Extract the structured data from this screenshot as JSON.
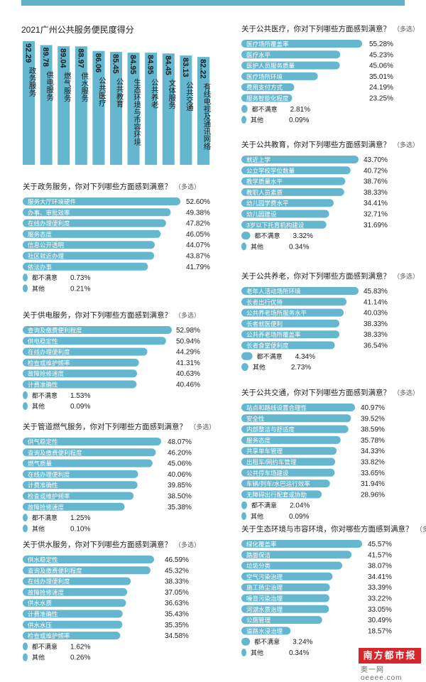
{
  "colors": {
    "bar": "#64b7cf",
    "bar_text": "#ffffff",
    "text": "#1c1c1c",
    "muted": "#5a5a5a",
    "brand": "#d7262b"
  },
  "chart_data": [
    {
      "type": "bar",
      "title": "2021广州公共服务便民度得分",
      "orientation": "vertical",
      "categories": [
        "政务服务",
        "供电服务",
        "燃气服务",
        "供水服务",
        "公共医疗",
        "公共教育",
        "生态环境与市容环境",
        "公共养老",
        "文体服务",
        "公共交通",
        "有线电视及通讯网络"
      ],
      "values": [
        92.29,
        89.78,
        89.04,
        88.97,
        86.06,
        85.45,
        84.95,
        84.95,
        84.45,
        83.13,
        82.22
      ],
      "value_labels": [
        "92.29",
        "89.78",
        "89.04",
        "88.97",
        "86.06",
        "85.45",
        "84.95",
        "84.95",
        "84.45",
        "83.13",
        "82.22"
      ]
    },
    {
      "type": "bar",
      "orientation": "horizontal",
      "title": "关于政务服务，你对下列哪些方面感到满意？",
      "note": "（多选）",
      "categories": [
        "服务大厅环境硬件",
        "办事、审批效率",
        "在线办理便利度",
        "服务态度",
        "信息公开透明",
        "社区就近办理",
        "依法办事",
        "都不满意",
        "其他"
      ],
      "values": [
        52.6,
        49.38,
        47.82,
        46.05,
        44.07,
        43.87,
        41.79,
        0.73,
        0.21
      ],
      "value_labels": [
        "52.60%",
        "49.38%",
        "47.82%",
        "46.05%",
        "44.07%",
        "43.87%",
        "41.79%",
        "0.73%",
        "0.21%"
      ]
    },
    {
      "type": "bar",
      "orientation": "horizontal",
      "title": "关于供电服务，你对下列哪些方面感到满意？",
      "note": "（多选）",
      "categories": [
        "查询及缴费便利程度",
        "供电稳定性",
        "在线办理便利度",
        "检查或维护频率",
        "故障抢修速度",
        "计费准确性",
        "都不满意",
        "其他"
      ],
      "values": [
        52.98,
        50.94,
        44.29,
        41.31,
        40.63,
        40.46,
        1.53,
        0.09
      ],
      "value_labels": [
        "52.98%",
        "50.94%",
        "44.29%",
        "41.31%",
        "40.63%",
        "40.46%",
        "1.53%",
        "0.09%"
      ]
    },
    {
      "type": "bar",
      "orientation": "horizontal",
      "title": "关于管道燃气服务，你对下列哪些方面感到满意？",
      "note": "（多选）",
      "categories": [
        "供气稳定性",
        "查询及缴费便利程度",
        "燃气质量",
        "在线办理便利度",
        "计费准确性",
        "检查或维护频率",
        "故障抢修速度",
        "都不满意",
        "其他"
      ],
      "values": [
        48.07,
        46.2,
        45.06,
        40.06,
        39.85,
        38.5,
        35.38,
        1.25,
        0.1
      ],
      "value_labels": [
        "48.07%",
        "46.20%",
        "45.06%",
        "40.06%",
        "39.85%",
        "38.50%",
        "35.38%",
        "1.25%",
        "0.10%"
      ]
    },
    {
      "type": "bar",
      "orientation": "horizontal",
      "title": "关于供水服务，你对下列哪些方面感到满意？",
      "note": "（多选）",
      "categories": [
        "供水稳定性",
        "查询及缴费便利程度",
        "在线办理便利度",
        "故障抢修速度",
        "供水水质",
        "计费准确性",
        "供水水压",
        "检查或维护频率",
        "都不满意",
        "其他"
      ],
      "values": [
        46.59,
        45.32,
        38.33,
        37.05,
        36.63,
        35.43,
        35.35,
        34.58,
        1.62,
        0.26
      ],
      "value_labels": [
        "46.59%",
        "45.32%",
        "38.33%",
        "37.05%",
        "36.63%",
        "35.43%",
        "35.35%",
        "34.58%",
        "1.62%",
        "0.26%"
      ]
    },
    {
      "type": "bar",
      "orientation": "horizontal",
      "title": "关于公共医疗，你对下列哪些方面感到满意？",
      "note": "（多选）",
      "categories": [
        "医疗场所覆盖率",
        "医疗水平",
        "医护人员服务质量",
        "医疗场所环境",
        "费用支付方式",
        "服务智能化程度",
        "都不满意",
        "其他"
      ],
      "values": [
        55.28,
        45.23,
        45.06,
        35.01,
        24.19,
        23.25,
        2.81,
        0.09
      ],
      "value_labels": [
        "55.28%",
        "45.23%",
        "45.06%",
        "35.01%",
        "24.19%",
        "23.25%",
        "2.81%",
        "0.09%"
      ]
    },
    {
      "type": "bar",
      "orientation": "horizontal",
      "title": "关于公共教育，你对下列哪些方面感到满意？",
      "note": "（多选）",
      "categories": [
        "就近上学",
        "公立学校学位数量",
        "教学质量水平",
        "教职人员素质",
        "幼儿园学费水平",
        "幼儿园建设",
        "3岁以下托育机构建设",
        "都不满意",
        "其他"
      ],
      "values": [
        43.7,
        40.72,
        38.76,
        38.33,
        34.41,
        32.71,
        31.69,
        3.32,
        0.34
      ],
      "value_labels": [
        "43.70%",
        "40.72%",
        "38.76%",
        "38.33%",
        "34.41%",
        "32.71%",
        "31.69%",
        "3.32%",
        "0.34%"
      ]
    },
    {
      "type": "bar",
      "orientation": "horizontal",
      "title": "关于公共养老，你对下列哪些方面感到满意？",
      "note": "（多选）",
      "categories": [
        "老年人活动场所环境",
        "长者出行优待",
        "公共养老场所服务水平",
        "长者就医便利",
        "公共养老场所覆盖率",
        "长者食堂便利度",
        "都不满意",
        "其他"
      ],
      "values": [
        45.83,
        41.14,
        40.03,
        38.33,
        38.33,
        36.54,
        4.34,
        2.73
      ],
      "value_labels": [
        "45.83%",
        "41.14%",
        "40.03%",
        "38.33%",
        "38.33%",
        "36.54%",
        "4.34%",
        "2.73%"
      ]
    },
    {
      "type": "bar",
      "orientation": "horizontal",
      "title": "关于公共交通，你对下列哪些方面感到满意？",
      "note": "（多选）",
      "categories": [
        "站点和路线设置合理性",
        "安全性",
        "内部整洁与舒适度",
        "服务态度",
        "共享单车管理",
        "出租车/网约车管理",
        "公共停车场建设",
        "车辆/列车/水巴运行效率",
        "无障碍出行配套或协助",
        "都不满意",
        "其他"
      ],
      "values": [
        40.97,
        39.52,
        38.59,
        35.78,
        34.33,
        33.82,
        33.65,
        31.94,
        28.96,
        2.04,
        0.09
      ],
      "value_labels": [
        "40.97%",
        "39.52%",
        "38.59%",
        "35.78%",
        "34.33%",
        "33.82%",
        "33.65%",
        "31.94%",
        "28.96%",
        "2.04%",
        "0.09%"
      ]
    },
    {
      "type": "bar",
      "orientation": "horizontal",
      "title": "关于生态环境与市容环境，你对哪些方面感到满意？",
      "note": "（多选）",
      "categories": [
        "绿化覆盖率",
        "路面保洁",
        "垃圾分类",
        "空气污染治理",
        "施工扬尘治理",
        "噪音污染治理",
        "河湖水质治理",
        "公厕管理",
        "道路水浸治理",
        "都不满意",
        "其他"
      ],
      "values": [
        45.57,
        41.57,
        38.07,
        34.41,
        33.39,
        33.22,
        33.05,
        30.49,
        18.57,
        3.24,
        0.34
      ],
      "value_labels": [
        "45.57%",
        "41.57%",
        "38.07%",
        "34.41%",
        "33.39%",
        "33.22%",
        "33.05%",
        "30.49%",
        "18.57%",
        "3.24%",
        "0.34%"
      ]
    }
  ],
  "brand": {
    "name": "南方都市报",
    "sub": "奥一网 oeeee.com"
  }
}
